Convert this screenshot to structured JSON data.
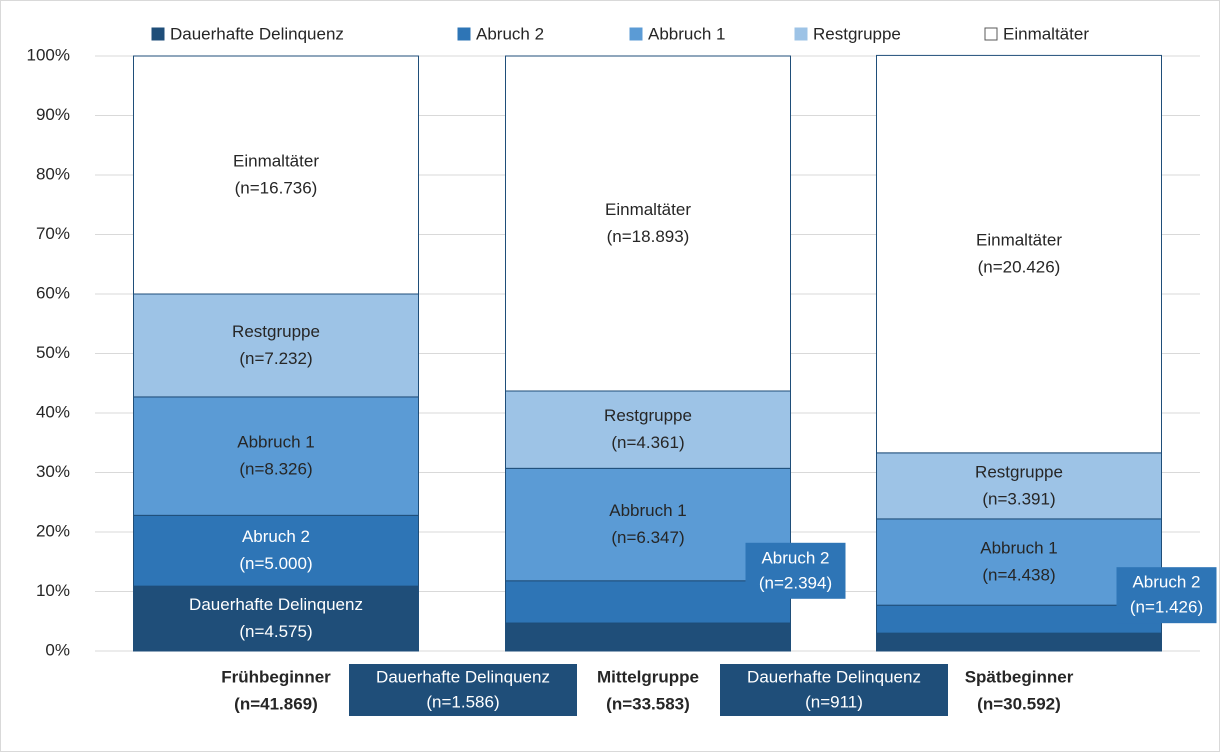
{
  "chart_data": {
    "type": "stacked_bar_100",
    "categories": [
      "Frühbeginner",
      "Mittelgruppe",
      "Spätbeginner"
    ],
    "category_counts": [
      "(n=41.869)",
      "(n=33.583)",
      "(n=30.592)"
    ],
    "series": [
      {
        "name": "Dauerhafte Delinquenz",
        "color": "#1f4e79",
        "values": [
          10.9,
          4.7,
          3.0
        ],
        "n_labels": [
          "(n=4.575)",
          "(n=1.586)",
          "(n=911)"
        ]
      },
      {
        "name": "Abruch 2",
        "color": "#2e75b6",
        "values": [
          11.9,
          7.1,
          4.7
        ],
        "n_labels": [
          "(n=5.000)",
          "(n=2.394)",
          "(n=1.426)"
        ]
      },
      {
        "name": "Abbruch 1",
        "color": "#5b9bd5",
        "values": [
          19.9,
          18.9,
          14.5
        ],
        "n_labels": [
          "(n=8.326)",
          "(n=6.347)",
          "(n=4.438)"
        ]
      },
      {
        "name": "Restgruppe",
        "color": "#9dc3e6",
        "values": [
          17.3,
          13.0,
          11.1
        ],
        "n_labels": [
          "(n=7.232)",
          "(n=4.361)",
          "(n=3.391)"
        ]
      },
      {
        "name": "Einmaltäter",
        "color": "#ffffff",
        "values": [
          40.0,
          56.3,
          66.8
        ],
        "n_labels": [
          "(n=16.736)",
          "(n=18.893)",
          "(n=20.426)"
        ]
      }
    ],
    "ylim": [
      0,
      100
    ],
    "yticks": [
      {
        "value": 0,
        "label": "0%"
      },
      {
        "value": 10,
        "label": "10%"
      },
      {
        "value": 20,
        "label": "20%"
      },
      {
        "value": 30,
        "label": "30%"
      },
      {
        "value": 40,
        "label": "40%"
      },
      {
        "value": 50,
        "label": "50%"
      },
      {
        "value": 60,
        "label": "60%"
      },
      {
        "value": 70,
        "label": "70%"
      },
      {
        "value": 80,
        "label": "80%"
      },
      {
        "value": 90,
        "label": "90%"
      },
      {
        "value": 100,
        "label": "100%"
      }
    ],
    "grid": true,
    "legend": "top"
  }
}
